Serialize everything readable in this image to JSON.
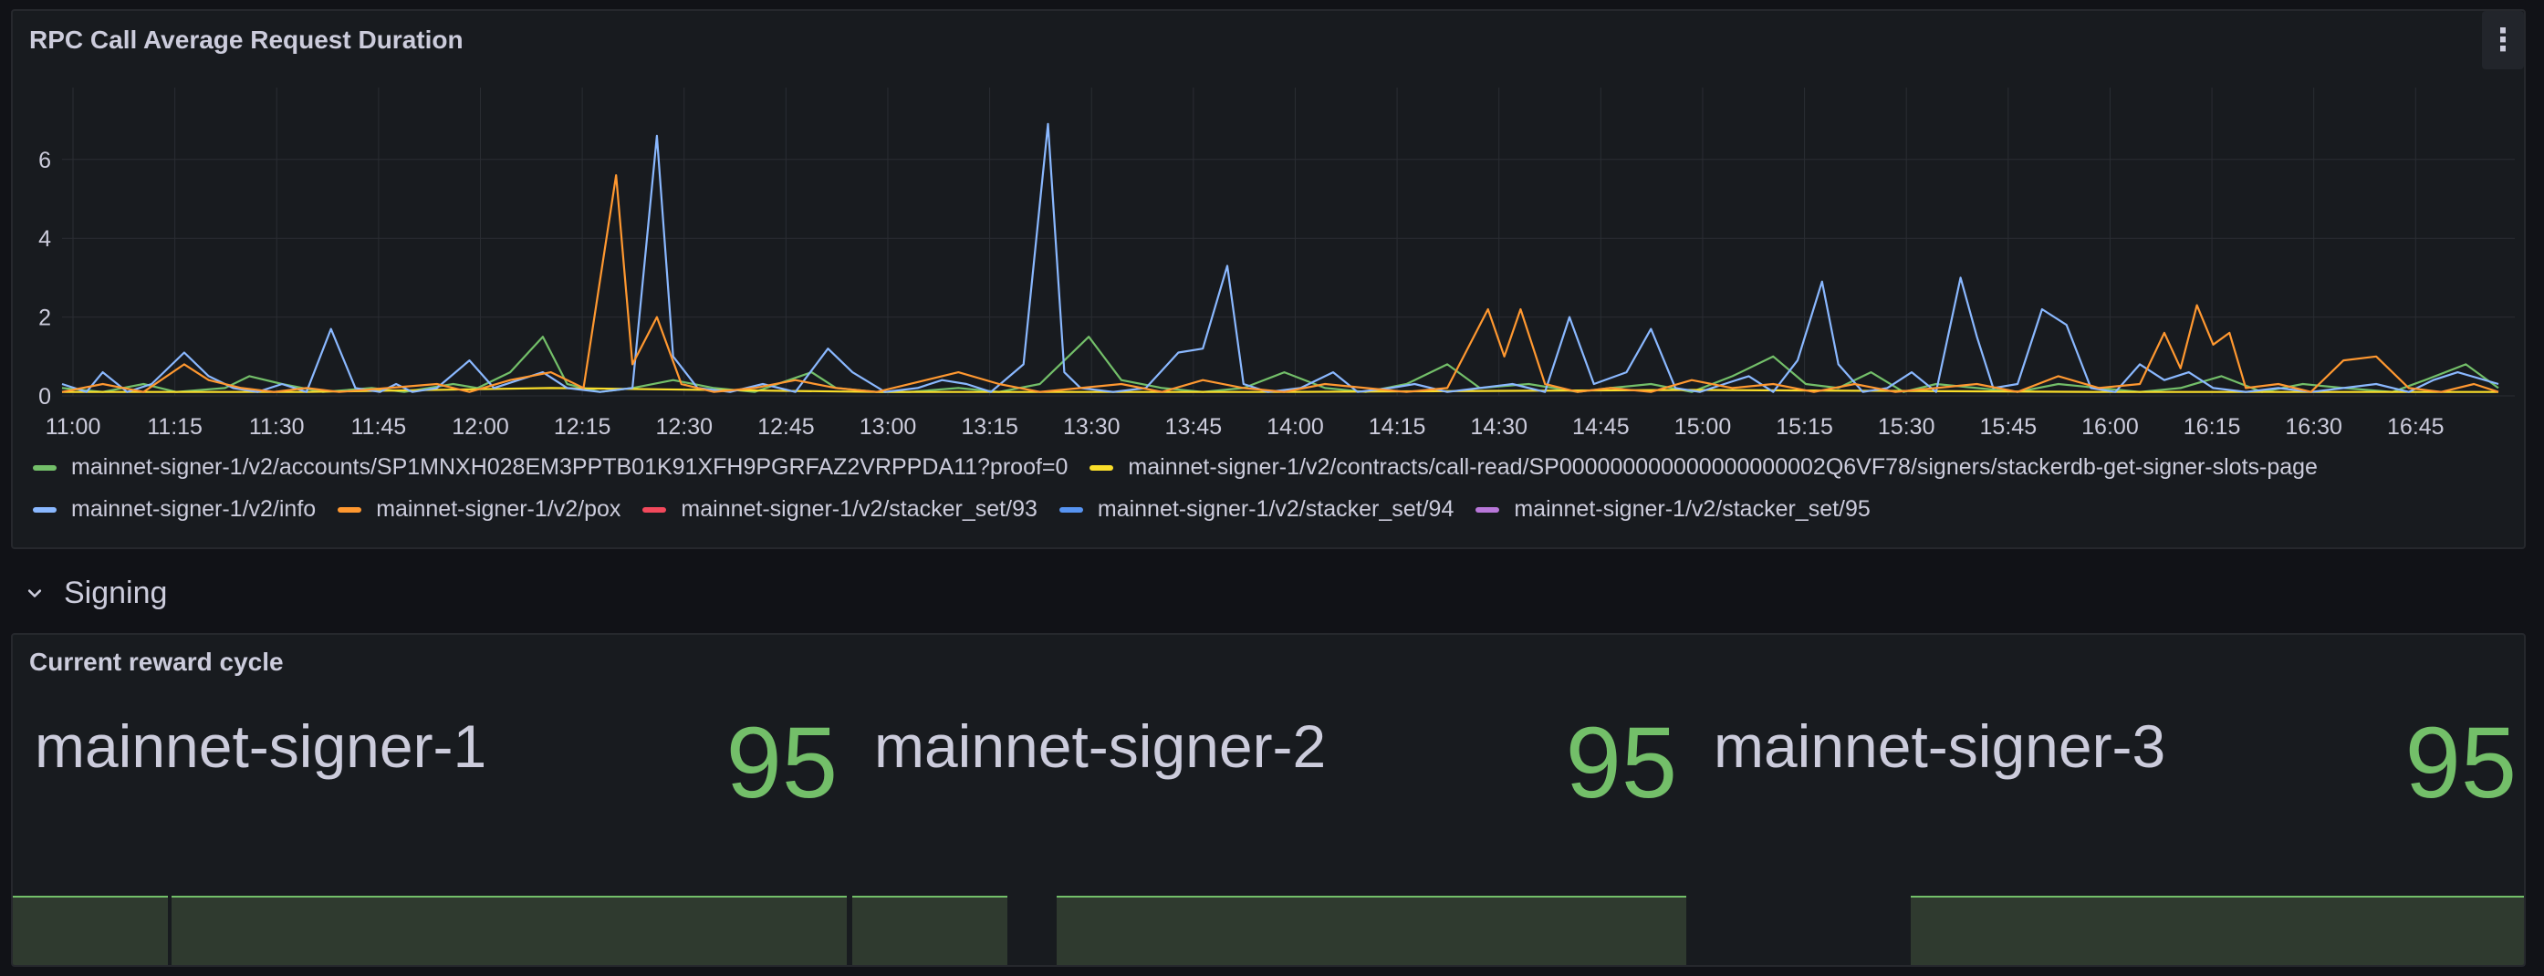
{
  "rpc_panel": {
    "title": "RPC Call Average Request Duration",
    "menu_icon": "kebab-menu-icon"
  },
  "signing_row": {
    "title": "Signing",
    "icon": "chevron-down-icon"
  },
  "reward_panel": {
    "title": "Current reward cycle",
    "stats": [
      {
        "name": "mainnet-signer-1",
        "value": "95"
      },
      {
        "name": "mainnet-signer-2",
        "value": "95"
      },
      {
        "name": "mainnet-signer-3",
        "value": "95"
      }
    ],
    "value_color": "#73bf69"
  },
  "chart_data": {
    "type": "line",
    "title": "RPC Call Average Request Duration",
    "x_ticks": [
      "11:00",
      "11:15",
      "11:30",
      "11:45",
      "12:00",
      "12:15",
      "12:30",
      "12:45",
      "13:00",
      "13:15",
      "13:30",
      "13:45",
      "14:00",
      "14:15",
      "14:30",
      "14:45",
      "15:00",
      "15:15",
      "15:30",
      "15:45",
      "16:00",
      "16:15",
      "16:30",
      "16:45"
    ],
    "y_ticks": [
      "0",
      "2",
      "4",
      "6"
    ],
    "ylim": [
      0,
      7.5
    ],
    "grid": true,
    "legend_position": "bottom",
    "series": [
      {
        "name": "mainnet-signer-1/v2/accounts/SP1MNXH028EM3PPTB01K91XFH9PGRFAZ2VRPPDA11?proof=0",
        "color": "#73bf69",
        "points": [
          [
            0,
            0.2
          ],
          [
            5,
            0.1
          ],
          [
            10,
            0.3
          ],
          [
            14,
            0.1
          ],
          [
            20,
            0.2
          ],
          [
            23,
            0.5
          ],
          [
            27,
            0.3
          ],
          [
            32,
            0.1
          ],
          [
            38,
            0.2
          ],
          [
            42,
            0.1
          ],
          [
            48,
            0.3
          ],
          [
            51,
            0.2
          ],
          [
            55,
            0.6
          ],
          [
            59,
            1.5
          ],
          [
            62,
            0.3
          ],
          [
            66,
            0.1
          ],
          [
            70,
            0.2
          ],
          [
            75,
            0.4
          ],
          [
            80,
            0.2
          ],
          [
            85,
            0.1
          ],
          [
            92,
            0.6
          ],
          [
            95,
            0.2
          ],
          [
            100,
            0.1
          ],
          [
            104,
            0.1
          ],
          [
            110,
            0.2
          ],
          [
            115,
            0.1
          ],
          [
            120,
            0.3
          ],
          [
            126,
            1.5
          ],
          [
            130,
            0.4
          ],
          [
            135,
            0.2
          ],
          [
            140,
            0.1
          ],
          [
            145,
            0.2
          ],
          [
            150,
            0.6
          ],
          [
            155,
            0.2
          ],
          [
            160,
            0.1
          ],
          [
            165,
            0.3
          ],
          [
            170,
            0.8
          ],
          [
            174,
            0.2
          ],
          [
            180,
            0.3
          ],
          [
            186,
            0.1
          ],
          [
            190,
            0.2
          ],
          [
            195,
            0.3
          ],
          [
            200,
            0.1
          ],
          [
            205,
            0.5
          ],
          [
            210,
            1.0
          ],
          [
            214,
            0.3
          ],
          [
            218,
            0.2
          ],
          [
            222,
            0.6
          ],
          [
            226,
            0.1
          ],
          [
            230,
            0.3
          ],
          [
            235,
            0.2
          ],
          [
            240,
            0.1
          ],
          [
            245,
            0.3
          ],
          [
            250,
            0.2
          ],
          [
            255,
            0.1
          ],
          [
            260,
            0.2
          ],
          [
            265,
            0.5
          ],
          [
            270,
            0.1
          ],
          [
            275,
            0.3
          ],
          [
            280,
            0.2
          ],
          [
            286,
            0.1
          ],
          [
            290,
            0.4
          ],
          [
            295,
            0.8
          ],
          [
            299,
            0.2
          ]
        ]
      },
      {
        "name": "mainnet-signer-1/v2/contracts/call-read/SP000000000000000000002Q6VF78/signers/stackerdb-get-signer-slots-page",
        "color": "#fade2a",
        "points": [
          [
            0,
            0.1
          ],
          [
            30,
            0.1
          ],
          [
            60,
            0.2
          ],
          [
            100,
            0.1
          ],
          [
            150,
            0.1
          ],
          [
            200,
            0.15
          ],
          [
            250,
            0.1
          ],
          [
            299,
            0.1
          ]
        ]
      },
      {
        "name": "mainnet-signer-1/v2/info",
        "color": "#8ab8ff",
        "points": [
          [
            0,
            0.3
          ],
          [
            3,
            0.1
          ],
          [
            5,
            0.6
          ],
          [
            8,
            0.1
          ],
          [
            11,
            0.3
          ],
          [
            15,
            1.1
          ],
          [
            18,
            0.5
          ],
          [
            21,
            0.2
          ],
          [
            24,
            0.1
          ],
          [
            27,
            0.3
          ],
          [
            30,
            0.1
          ],
          [
            33,
            1.7
          ],
          [
            36,
            0.2
          ],
          [
            39,
            0.1
          ],
          [
            41,
            0.3
          ],
          [
            43,
            0.1
          ],
          [
            46,
            0.2
          ],
          [
            50,
            0.9
          ],
          [
            53,
            0.2
          ],
          [
            56,
            0.4
          ],
          [
            59,
            0.6
          ],
          [
            62,
            0.2
          ],
          [
            66,
            0.1
          ],
          [
            70,
            0.2
          ],
          [
            73,
            6.6
          ],
          [
            75,
            1.0
          ],
          [
            78,
            0.2
          ],
          [
            82,
            0.1
          ],
          [
            86,
            0.3
          ],
          [
            90,
            0.1
          ],
          [
            94,
            1.2
          ],
          [
            97,
            0.6
          ],
          [
            101,
            0.1
          ],
          [
            105,
            0.2
          ],
          [
            108,
            0.4
          ],
          [
            111,
            0.3
          ],
          [
            114,
            0.1
          ],
          [
            118,
            0.8
          ],
          [
            121,
            6.9
          ],
          [
            123,
            0.6
          ],
          [
            125,
            0.2
          ],
          [
            129,
            0.1
          ],
          [
            133,
            0.2
          ],
          [
            137,
            1.1
          ],
          [
            140,
            1.2
          ],
          [
            143,
            3.3
          ],
          [
            145,
            0.3
          ],
          [
            148,
            0.1
          ],
          [
            152,
            0.2
          ],
          [
            156,
            0.6
          ],
          [
            159,
            0.1
          ],
          [
            163,
            0.2
          ],
          [
            166,
            0.3
          ],
          [
            170,
            0.1
          ],
          [
            174,
            0.2
          ],
          [
            178,
            0.3
          ],
          [
            182,
            0.1
          ],
          [
            185,
            2.0
          ],
          [
            188,
            0.3
          ],
          [
            192,
            0.6
          ],
          [
            195,
            1.7
          ],
          [
            198,
            0.2
          ],
          [
            201,
            0.1
          ],
          [
            204,
            0.3
          ],
          [
            207,
            0.5
          ],
          [
            210,
            0.1
          ],
          [
            213,
            0.9
          ],
          [
            216,
            2.9
          ],
          [
            218,
            0.8
          ],
          [
            221,
            0.1
          ],
          [
            224,
            0.2
          ],
          [
            227,
            0.6
          ],
          [
            230,
            0.1
          ],
          [
            233,
            3.0
          ],
          [
            235,
            1.5
          ],
          [
            237,
            0.2
          ],
          [
            240,
            0.3
          ],
          [
            243,
            2.2
          ],
          [
            246,
            1.8
          ],
          [
            249,
            0.2
          ],
          [
            252,
            0.1
          ],
          [
            255,
            0.8
          ],
          [
            258,
            0.4
          ],
          [
            261,
            0.6
          ],
          [
            264,
            0.2
          ],
          [
            268,
            0.1
          ],
          [
            272,
            0.2
          ],
          [
            276,
            0.1
          ],
          [
            280,
            0.2
          ],
          [
            284,
            0.3
          ],
          [
            288,
            0.1
          ],
          [
            291,
            0.4
          ],
          [
            294,
            0.6
          ],
          [
            299,
            0.3
          ]
        ]
      },
      {
        "name": "mainnet-signer-1/v2/pox",
        "color": "#ff9830",
        "points": [
          [
            0,
            0.1
          ],
          [
            5,
            0.3
          ],
          [
            10,
            0.1
          ],
          [
            15,
            0.8
          ],
          [
            18,
            0.4
          ],
          [
            22,
            0.2
          ],
          [
            26,
            0.1
          ],
          [
            30,
            0.2
          ],
          [
            34,
            0.1
          ],
          [
            40,
            0.2
          ],
          [
            46,
            0.3
          ],
          [
            50,
            0.1
          ],
          [
            55,
            0.4
          ],
          [
            60,
            0.6
          ],
          [
            64,
            0.2
          ],
          [
            68,
            5.6
          ],
          [
            70,
            0.8
          ],
          [
            73,
            2.0
          ],
          [
            76,
            0.3
          ],
          [
            80,
            0.1
          ],
          [
            85,
            0.2
          ],
          [
            90,
            0.4
          ],
          [
            95,
            0.2
          ],
          [
            100,
            0.1
          ],
          [
            110,
            0.6
          ],
          [
            115,
            0.3
          ],
          [
            120,
            0.1
          ],
          [
            125,
            0.2
          ],
          [
            130,
            0.3
          ],
          [
            135,
            0.1
          ],
          [
            140,
            0.4
          ],
          [
            145,
            0.2
          ],
          [
            150,
            0.1
          ],
          [
            155,
            0.3
          ],
          [
            160,
            0.2
          ],
          [
            165,
            0.1
          ],
          [
            170,
            0.2
          ],
          [
            175,
            2.2
          ],
          [
            177,
            1.0
          ],
          [
            179,
            2.2
          ],
          [
            182,
            0.3
          ],
          [
            186,
            0.1
          ],
          [
            190,
            0.2
          ],
          [
            195,
            0.1
          ],
          [
            200,
            0.4
          ],
          [
            205,
            0.2
          ],
          [
            210,
            0.3
          ],
          [
            215,
            0.1
          ],
          [
            220,
            0.3
          ],
          [
            225,
            0.1
          ],
          [
            230,
            0.2
          ],
          [
            235,
            0.3
          ],
          [
            240,
            0.1
          ],
          [
            245,
            0.5
          ],
          [
            250,
            0.2
          ],
          [
            255,
            0.3
          ],
          [
            258,
            1.6
          ],
          [
            260,
            0.7
          ],
          [
            262,
            2.3
          ],
          [
            264,
            1.3
          ],
          [
            266,
            1.6
          ],
          [
            268,
            0.2
          ],
          [
            272,
            0.3
          ],
          [
            276,
            0.1
          ],
          [
            280,
            0.9
          ],
          [
            284,
            1.0
          ],
          [
            288,
            0.2
          ],
          [
            292,
            0.1
          ],
          [
            296,
            0.3
          ],
          [
            299,
            0.1
          ]
        ]
      },
      {
        "name": "mainnet-signer-1/v2/stacker_set/93",
        "color": "#f2495c",
        "points": []
      },
      {
        "name": "mainnet-signer-1/v2/stacker_set/94",
        "color": "#5794f2",
        "points": []
      },
      {
        "name": "mainnet-signer-1/v2/stacker_set/95",
        "color": "#b877d9",
        "points": []
      }
    ]
  }
}
